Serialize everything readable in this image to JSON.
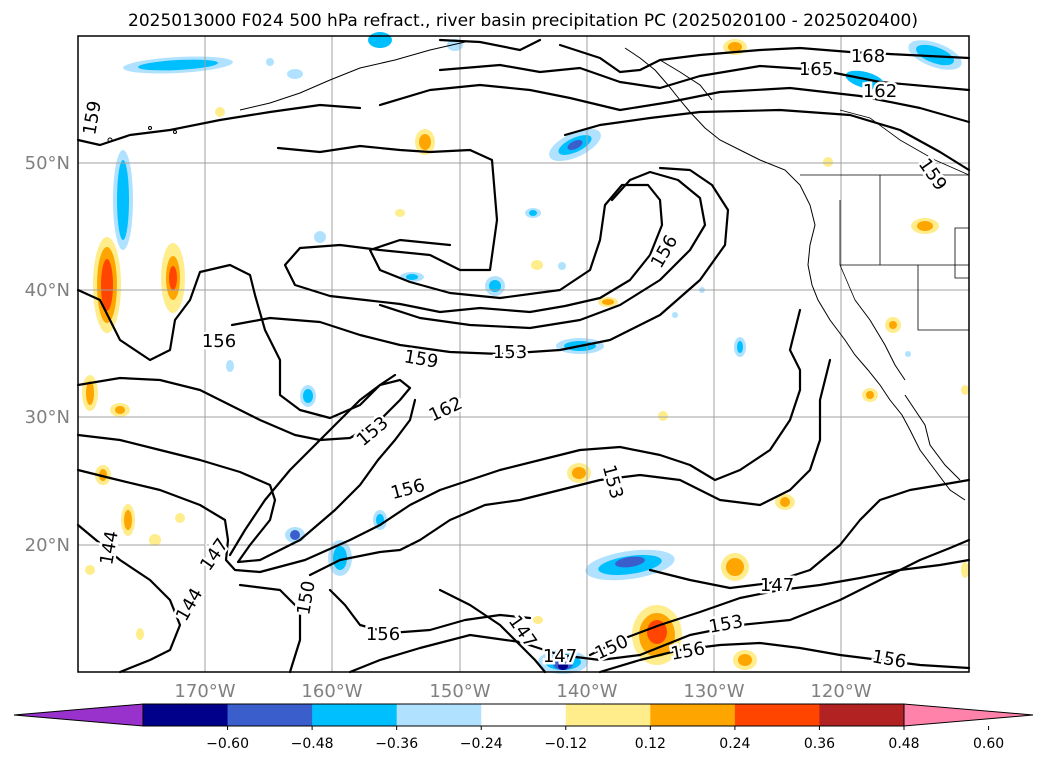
{
  "title": "2025013000 F024 500 hPa refract., river basin precipitation PC (2025020100 - 2025020400)",
  "lat_labels": [
    "50°N",
    "40°N",
    "30°N",
    "20°N"
  ],
  "lon_labels": [
    "170°W",
    "160°W",
    "150°W",
    "140°W",
    "130°W",
    "120°W"
  ],
  "colorbar": {
    "colors": [
      "#9932cc",
      "#00008b",
      "#3a5fcd",
      "#00bfff",
      "#b0e2ff",
      "#ffffff",
      "#ffec8b",
      "#ffa500",
      "#ff4500",
      "#b22222",
      "#ff82ab"
    ],
    "ticks": [
      "−0.60",
      "−0.48",
      "−0.36",
      "−0.24",
      "−0.12",
      "0.12",
      "0.24",
      "0.36",
      "0.48",
      "0.60"
    ]
  },
  "contour_labels": [
    "168",
    "165",
    "162",
    "159",
    "159",
    "156",
    "159",
    "153",
    "162",
    "153",
    "156",
    "156",
    "153",
    "147",
    "144",
    "144",
    "150",
    "156",
    "147",
    "150",
    "147",
    "156",
    "153",
    "156",
    "147"
  ]
}
